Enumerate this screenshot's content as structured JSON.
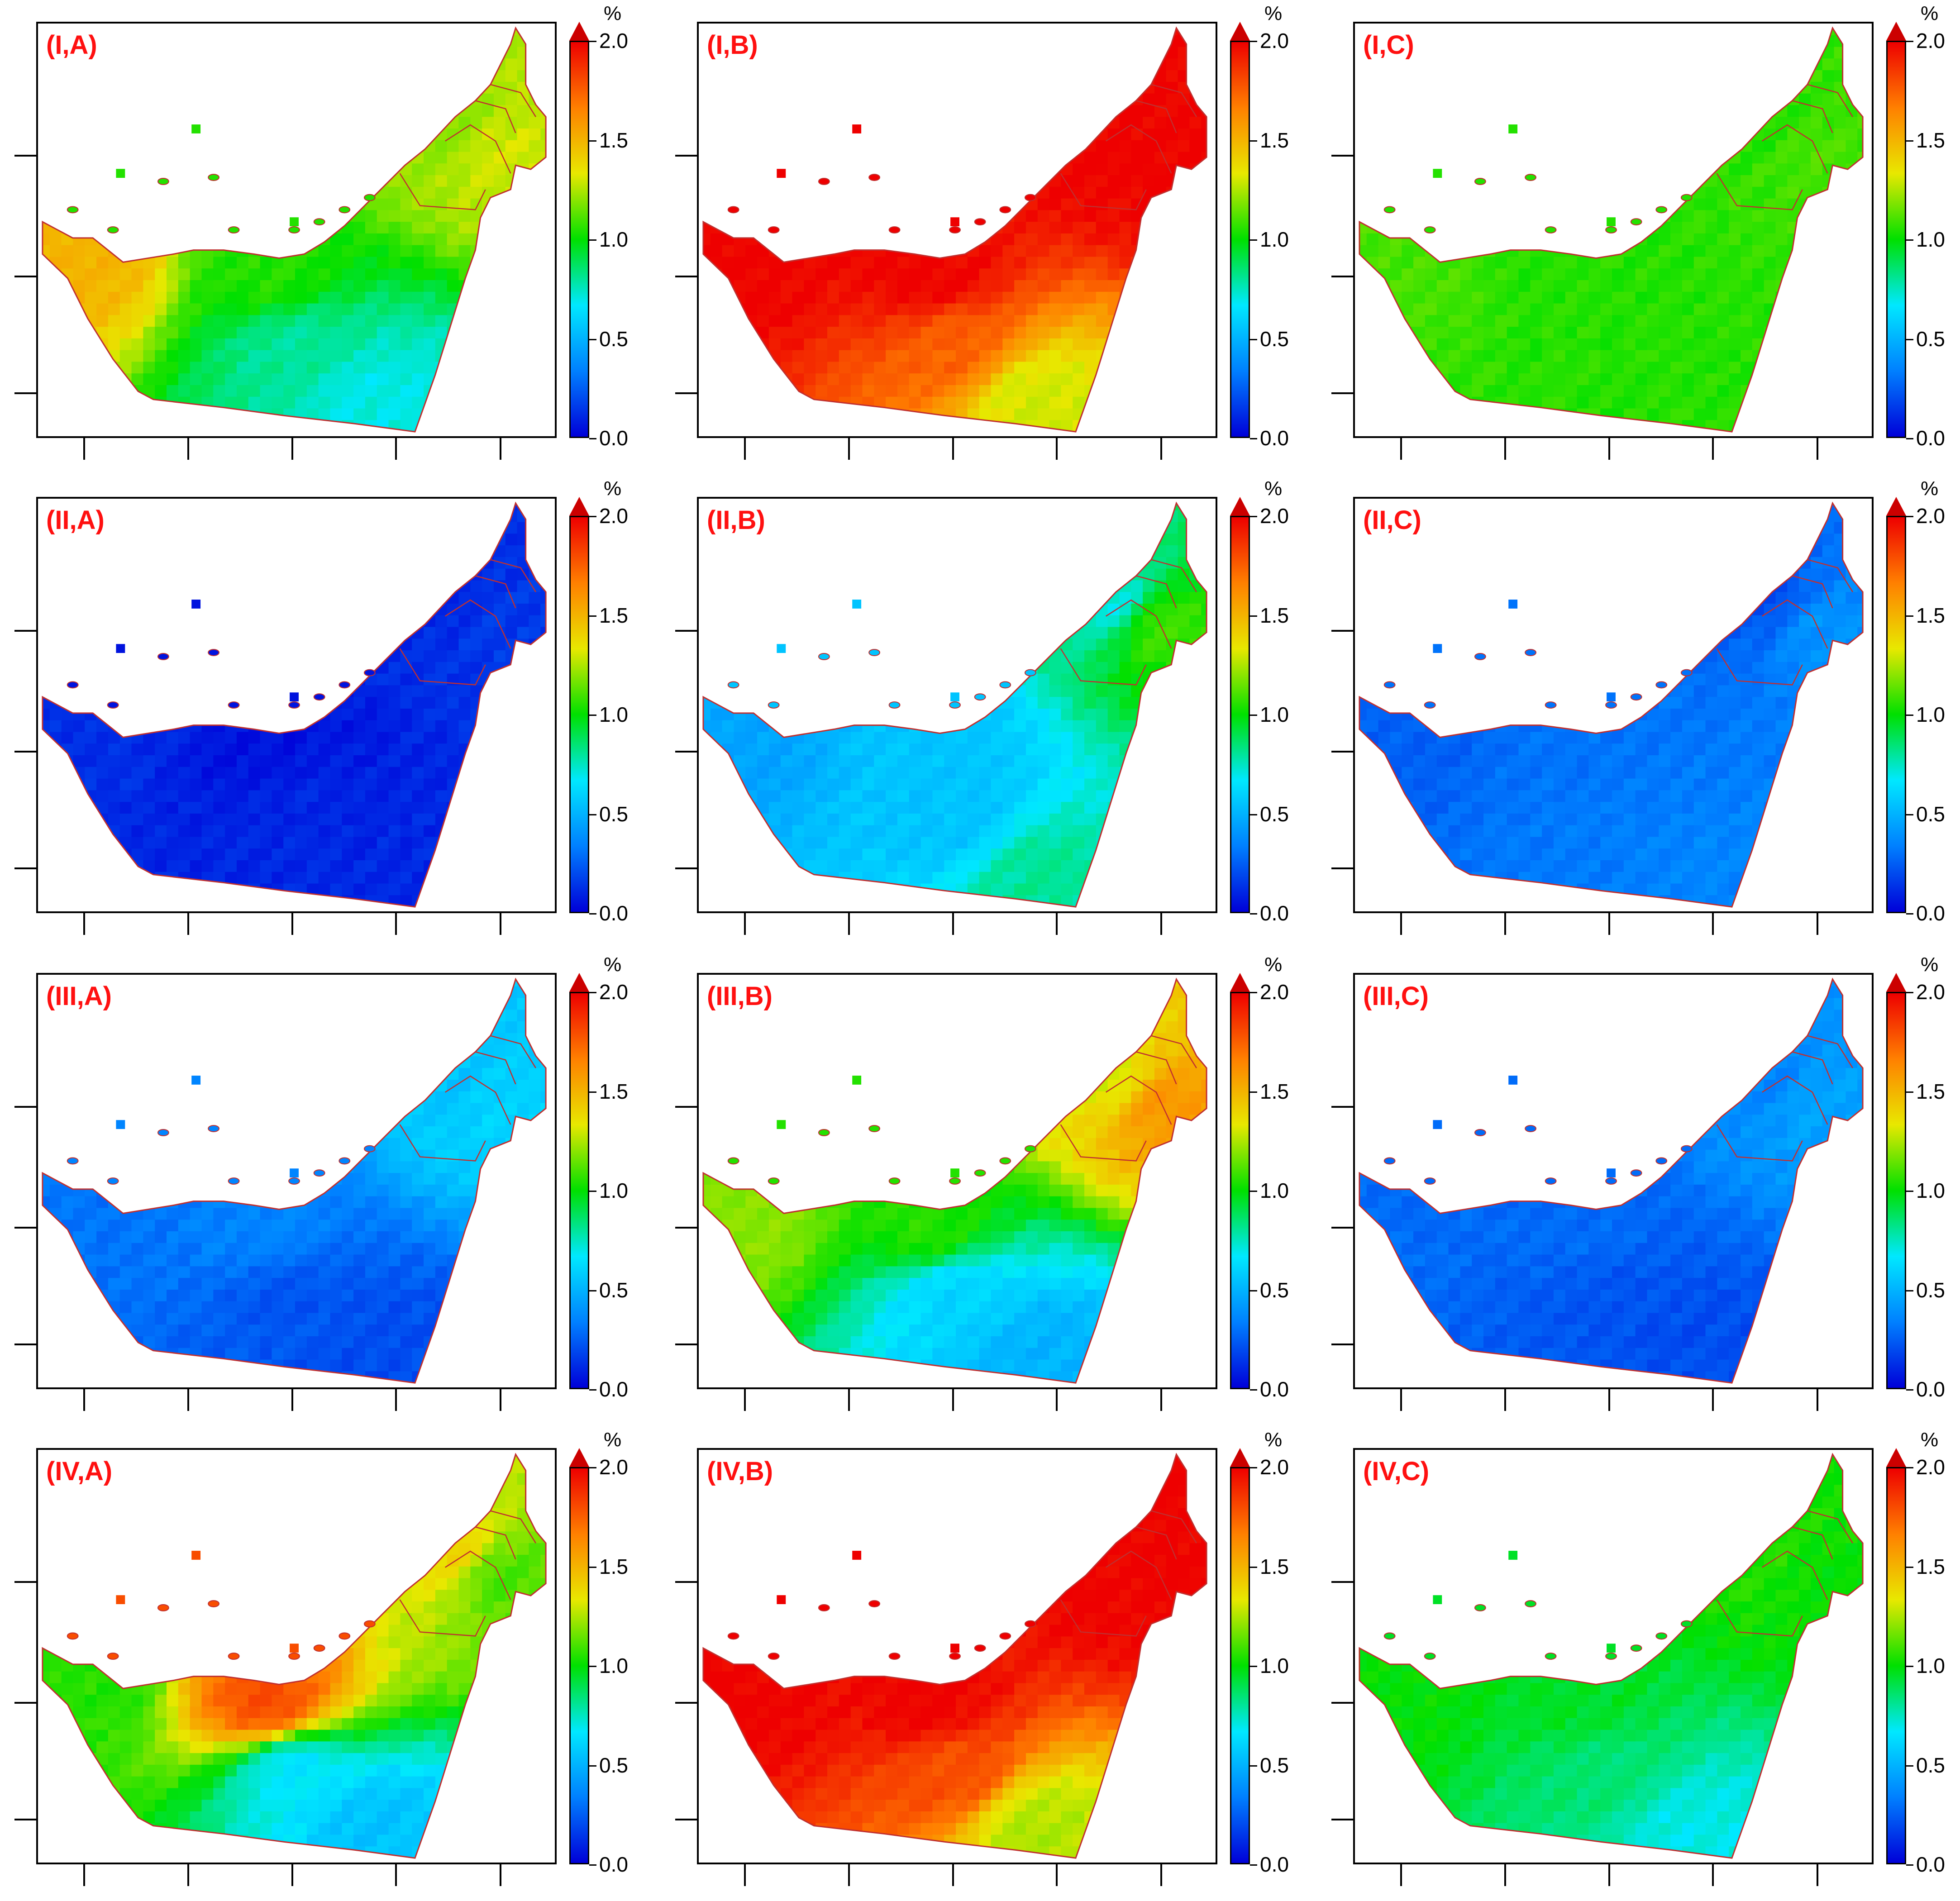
{
  "colorbar": {
    "unit": "%",
    "ticks": [
      "0.0",
      "0.5",
      "1.0",
      "1.5",
      "2.0"
    ],
    "min": 0.0,
    "max": 2.0,
    "colors": [
      "#0000d8",
      "#0080ff",
      "#00e8ff",
      "#00e000",
      "#e8e800",
      "#ff8000",
      "#ee0000"
    ]
  },
  "border_color": "#c03030",
  "label_color": "#ff1010",
  "panels": [
    {
      "label": "(I,A)",
      "values": {
        "west": 1.5,
        "coast": 1.05,
        "north": 1.2,
        "interior": 0.8,
        "south": 0.7,
        "east": 1.3
      }
    },
    {
      "label": "(I,B)",
      "values": {
        "west": 2.0,
        "coast": 2.0,
        "north": 2.0,
        "interior": 1.75,
        "south": 1.3,
        "east": 2.0
      }
    },
    {
      "label": "(I,C)",
      "values": {
        "west": 1.1,
        "coast": 1.05,
        "north": 1.05,
        "interior": 1.05,
        "south": 1.05,
        "east": 1.1
      }
    },
    {
      "label": "(II,A)",
      "values": {
        "west": 0.12,
        "coast": 0.05,
        "north": 0.1,
        "interior": 0.1,
        "south": 0.1,
        "east": 0.15
      }
    },
    {
      "label": "(II,B)",
      "values": {
        "west": 0.45,
        "coast": 0.55,
        "north": 0.7,
        "interior": 0.55,
        "south": 0.8,
        "east": 1.1
      }
    },
    {
      "label": "(II,C)",
      "values": {
        "west": 0.25,
        "coast": 0.3,
        "north": 0.2,
        "interior": 0.32,
        "south": 0.35,
        "east": 0.4
      }
    },
    {
      "label": "(III,A)",
      "values": {
        "west": 0.3,
        "coast": 0.35,
        "north": 0.55,
        "interior": 0.22,
        "south": 0.2,
        "east": 0.6
      }
    },
    {
      "label": "(III,B)",
      "values": {
        "west": 1.2,
        "coast": 1.05,
        "north": 1.3,
        "interior": 0.6,
        "south": 0.5,
        "east": 1.6
      }
    },
    {
      "label": "(III,C)",
      "values": {
        "west": 0.28,
        "coast": 0.28,
        "north": 0.35,
        "interior": 0.22,
        "south": 0.2,
        "east": 0.45
      }
    },
    {
      "label": "(IV,A)",
      "values": {
        "west": 1.05,
        "coast": 1.8,
        "north": 1.4,
        "interior": 0.65,
        "south": 0.55,
        "east": 1.1
      }
    },
    {
      "label": "(IV,B)",
      "values": {
        "west": 2.0,
        "coast": 2.0,
        "north": 2.0,
        "interior": 1.8,
        "south": 1.25,
        "east": 2.0
      }
    },
    {
      "label": "(IV,C)",
      "values": {
        "west": 1.0,
        "coast": 0.95,
        "north": 1.05,
        "interior": 0.85,
        "south": 0.7,
        "east": 1.0
      }
    }
  ]
}
